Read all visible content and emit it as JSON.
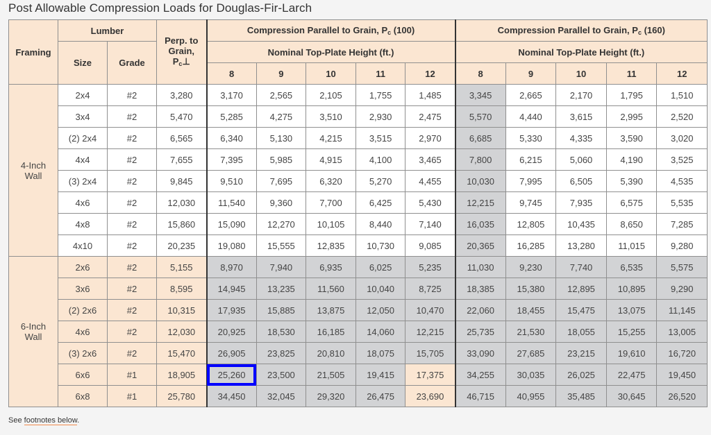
{
  "title": "Post Allowable Compression Loads for Douglas-Fir-Larch",
  "headers": {
    "framing": "Framing",
    "lumber": "Lumber",
    "size": "Size",
    "grade": "Grade",
    "perp": "Perp. to Grain, Pc⊥",
    "group100": "Compression Parallel to Grain, Pc (100)",
    "group160": "Compression Parallel to Grain, Pc (160)",
    "nominal": "Nominal Top-Plate Height (ft.)",
    "heights": [
      "8",
      "9",
      "10",
      "11",
      "12"
    ]
  },
  "colors": {
    "header": "#fbe6d2",
    "shaded": "#d2d3d5",
    "selected_outline": "#0000ff",
    "link_underline": "#f08a4b"
  },
  "groups": [
    {
      "framing": "4-Inch Wall",
      "rows": [
        {
          "size": "2x4",
          "grade": "#2",
          "perp": "3,280",
          "pc100": [
            "3,170",
            "2,565",
            "2,105",
            "1,755",
            "1,485"
          ],
          "pc160": [
            "3,345",
            "2,665",
            "2,170",
            "1,795",
            "1,510"
          ]
        },
        {
          "size": "3x4",
          "grade": "#2",
          "perp": "5,470",
          "pc100": [
            "5,285",
            "4,275",
            "3,510",
            "2,930",
            "2,475"
          ],
          "pc160": [
            "5,570",
            "4,440",
            "3,615",
            "2,995",
            "2,520"
          ]
        },
        {
          "size": "(2) 2x4",
          "grade": "#2",
          "perp": "6,565",
          "pc100": [
            "6,340",
            "5,130",
            "4,215",
            "3,515",
            "2,970"
          ],
          "pc160": [
            "6,685",
            "5,330",
            "4,335",
            "3,590",
            "3,020"
          ]
        },
        {
          "size": "4x4",
          "grade": "#2",
          "perp": "7,655",
          "pc100": [
            "7,395",
            "5,985",
            "4,915",
            "4,100",
            "3,465"
          ],
          "pc160": [
            "7,800",
            "6,215",
            "5,060",
            "4,190",
            "3,525"
          ]
        },
        {
          "size": "(3) 2x4",
          "grade": "#2",
          "perp": "9,845",
          "pc100": [
            "9,510",
            "7,695",
            "6,320",
            "5,270",
            "4,455"
          ],
          "pc160": [
            "10,030",
            "7,995",
            "6,505",
            "5,390",
            "4,535"
          ]
        },
        {
          "size": "4x6",
          "grade": "#2",
          "perp": "12,030",
          "pc100": [
            "11,540",
            "9,360",
            "7,700",
            "6,425",
            "5,430"
          ],
          "pc160": [
            "12,215",
            "9,745",
            "7,935",
            "6,575",
            "5,535"
          ]
        },
        {
          "size": "4x8",
          "grade": "#2",
          "perp": "15,860",
          "pc100": [
            "15,090",
            "12,270",
            "10,105",
            "8,440",
            "7,140"
          ],
          "pc160": [
            "16,035",
            "12,805",
            "10,435",
            "8,650",
            "7,285"
          ]
        },
        {
          "size": "4x10",
          "grade": "#2",
          "perp": "20,235",
          "pc100": [
            "19,080",
            "15,555",
            "12,835",
            "10,730",
            "9,085"
          ],
          "pc160": [
            "20,365",
            "16,285",
            "13,280",
            "11,015",
            "9,280"
          ]
        }
      ]
    },
    {
      "framing": "6-Inch Wall",
      "rows": [
        {
          "size": "2x6",
          "grade": "#2",
          "perp": "5,155",
          "pc100": [
            "8,970",
            "7,940",
            "6,935",
            "6,025",
            "5,235"
          ],
          "pc160": [
            "11,030",
            "9,230",
            "7,740",
            "6,535",
            "5,575"
          ]
        },
        {
          "size": "3x6",
          "grade": "#2",
          "perp": "8,595",
          "pc100": [
            "14,945",
            "13,235",
            "11,560",
            "10,040",
            "8,725"
          ],
          "pc160": [
            "18,385",
            "15,380",
            "12,895",
            "10,895",
            "9,290"
          ]
        },
        {
          "size": "(2) 2x6",
          "grade": "#2",
          "perp": "10,315",
          "pc100": [
            "17,935",
            "15,885",
            "13,875",
            "12,050",
            "10,470"
          ],
          "pc160": [
            "22,060",
            "18,455",
            "15,475",
            "13,075",
            "11,145"
          ]
        },
        {
          "size": "4x6",
          "grade": "#2",
          "perp": "12,030",
          "pc100": [
            "20,925",
            "18,530",
            "16,185",
            "14,060",
            "12,215"
          ],
          "pc160": [
            "25,735",
            "21,530",
            "18,055",
            "15,255",
            "13,005"
          ]
        },
        {
          "size": "(3) 2x6",
          "grade": "#2",
          "perp": "15,470",
          "pc100": [
            "26,905",
            "23,825",
            "20,810",
            "18,075",
            "15,705"
          ],
          "pc160": [
            "33,090",
            "27,685",
            "23,215",
            "19,610",
            "16,720"
          ]
        },
        {
          "size": "6x6",
          "grade": "#1",
          "perp": "18,905",
          "pc100": [
            "25,260",
            "23,500",
            "21,505",
            "19,415",
            "17,375"
          ],
          "pc160": [
            "34,255",
            "30,035",
            "26,025",
            "22,475",
            "19,450"
          ]
        },
        {
          "size": "6x8",
          "grade": "#1",
          "perp": "25,780",
          "pc100": [
            "34,450",
            "32,045",
            "29,320",
            "26,475",
            "23,690"
          ],
          "pc160": [
            "46,715",
            "40,955",
            "35,485",
            "30,645",
            "26,520"
          ]
        }
      ]
    }
  ],
  "selected_cell": {
    "size": "6x6",
    "column": "pc100",
    "height": "8",
    "value": "25,260"
  },
  "footer": {
    "prefix": "See ",
    "link": "footnotes below",
    "suffix": "."
  }
}
